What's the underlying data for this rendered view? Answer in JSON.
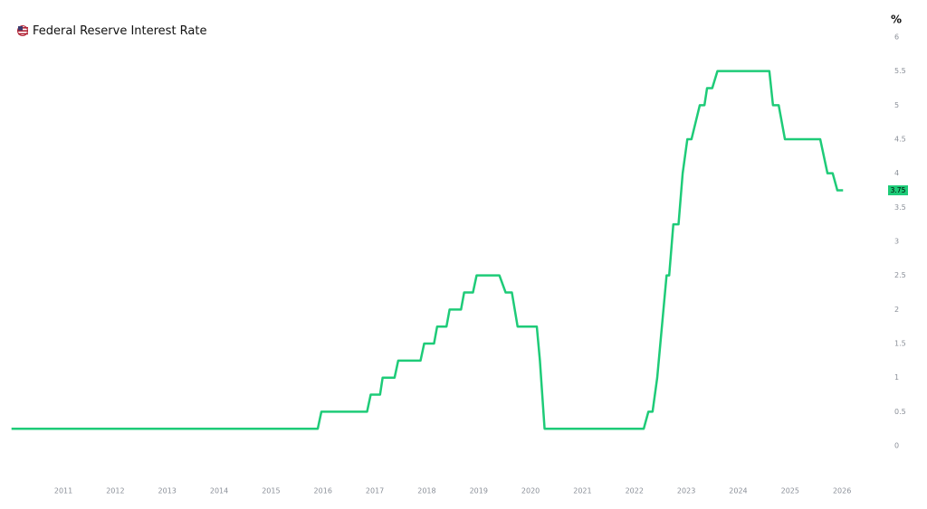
{
  "chart_data": {
    "type": "line",
    "title": "Federal Reserve Interest Rate",
    "y_label": "%",
    "series": [
      {
        "name": "Federal Reserve Interest Rate",
        "color": "#1ecb78",
        "x": [
          2010.0,
          2015.9,
          2015.97,
          2016.85,
          2016.92,
          2017.1,
          2017.15,
          2017.38,
          2017.45,
          2017.88,
          2017.95,
          2018.14,
          2018.2,
          2018.38,
          2018.44,
          2018.66,
          2018.72,
          2018.89,
          2018.96,
          2019.4,
          2019.52,
          2019.64,
          2019.75,
          2020.12,
          2020.18,
          2020.27,
          2022.18,
          2022.27,
          2022.35,
          2022.44,
          2022.62,
          2022.67,
          2022.75,
          2022.85,
          2022.93,
          2023.02,
          2023.1,
          2023.26,
          2023.35,
          2023.4,
          2023.5,
          2023.6,
          2024.6,
          2024.67,
          2024.78,
          2024.9,
          2025.58,
          2025.72,
          2025.82,
          2025.91,
          2026.02
        ],
        "values": [
          0.25,
          0.25,
          0.5,
          0.5,
          0.75,
          0.75,
          1.0,
          1.0,
          1.25,
          1.25,
          1.5,
          1.5,
          1.75,
          1.75,
          2.0,
          2.0,
          2.25,
          2.25,
          2.5,
          2.5,
          2.25,
          2.25,
          1.75,
          1.75,
          1.25,
          0.25,
          0.25,
          0.5,
          0.5,
          1.0,
          2.5,
          2.5,
          3.25,
          3.25,
          4.0,
          4.5,
          4.5,
          5.0,
          5.0,
          5.25,
          5.25,
          5.5,
          5.5,
          5.0,
          5.0,
          4.5,
          4.5,
          4.0,
          4.0,
          3.75,
          3.75
        ]
      }
    ],
    "xlim": [
      2010,
      2026.8
    ],
    "xticks": [
      2011,
      2012,
      2013,
      2014,
      2015,
      2016,
      2017,
      2018,
      2019,
      2020,
      2021,
      2022,
      2023,
      2024,
      2025,
      2026
    ],
    "ylim": [
      -0.5,
      6
    ],
    "yticks": [
      0,
      0.5,
      1,
      1.5,
      2,
      2.5,
      3,
      3.5,
      4,
      4.5,
      5,
      5.5,
      6
    ]
  }
}
